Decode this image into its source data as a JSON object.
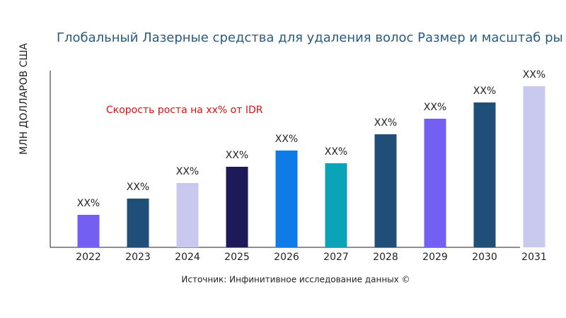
{
  "chart_data": {
    "type": "bar",
    "title": "Глобальный Лазерные средства для удаления волос Размер и масштаб ры",
    "y_label": "МЛН ДОЛЛАРОВ США",
    "annotation": "Скорость роста на xx% от IDR",
    "source": "Источник: Инфинитивное исследование данных ©",
    "categories": [
      "2022",
      "2023",
      "2024",
      "2025",
      "2026",
      "2027",
      "2028",
      "2029",
      "2030",
      "2031"
    ],
    "values": [
      46,
      69,
      91,
      114,
      137,
      119,
      160,
      182,
      205,
      228
    ],
    "value_labels": [
      "XX%",
      "XX%",
      "XX%",
      "XX%",
      "XX%",
      "XX%",
      "XX%",
      "XX%",
      "XX%",
      "XX%"
    ],
    "colors": [
      "#7360f2",
      "#1f4e79",
      "#c9c9f0",
      "#1e1a5a",
      "#0f7be6",
      "#0aa3b8",
      "#1f4e79",
      "#7360f2",
      "#1f4e79",
      "#c9c9f0"
    ],
    "ylim": [
      0,
      250
    ]
  }
}
